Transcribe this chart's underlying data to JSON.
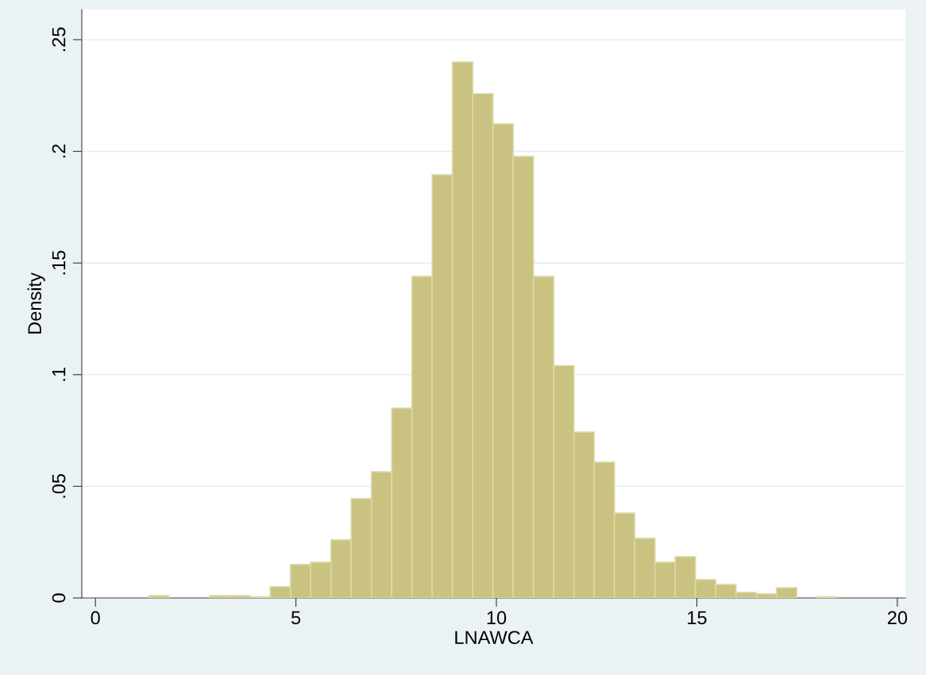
{
  "chart_data": {
    "type": "histogram",
    "xlabel": "LNAWCA",
    "ylabel": "Density",
    "bins": [
      1.33,
      1.835,
      2.34,
      2.845,
      3.35,
      3.855,
      4.36,
      4.865,
      5.37,
      5.875,
      6.38,
      6.885,
      7.39,
      7.895,
      8.4,
      8.905,
      9.41,
      9.915,
      10.42,
      10.925,
      11.43,
      11.935,
      12.44,
      12.945,
      13.45,
      13.955,
      14.46,
      14.965,
      15.47,
      15.975,
      16.48,
      16.985,
      17.49,
      17.995,
      18.5
    ],
    "values": [
      0.001,
      0,
      0,
      0.001,
      0.001,
      0.0005,
      0.005,
      0.015,
      0.016,
      0.026,
      0.0445,
      0.0565,
      0.085,
      0.144,
      0.1895,
      0.24,
      0.2258,
      0.2123,
      0.1977,
      0.144,
      0.104,
      0.0743,
      0.0608,
      0.038,
      0.0267,
      0.016,
      0.0185,
      0.0082,
      0.006,
      0.0025,
      0.0018,
      0.0046,
      0,
      0.0005
    ],
    "color": "#c9c281",
    "xlim": [
      -0.34,
      20.2
    ],
    "xticks": [
      0,
      5,
      10,
      15,
      20
    ],
    "ylim": [
      0,
      0.2635
    ],
    "yticks": [
      {
        "value": 0,
        "label": "0"
      },
      {
        "value": 0.05,
        "label": ".05"
      },
      {
        "value": 0.1,
        "label": ".1"
      },
      {
        "value": 0.15,
        "label": ".15"
      },
      {
        "value": 0.2,
        "label": ".2"
      },
      {
        "value": 0.25,
        "label": ".25"
      }
    ],
    "grid": "y"
  }
}
